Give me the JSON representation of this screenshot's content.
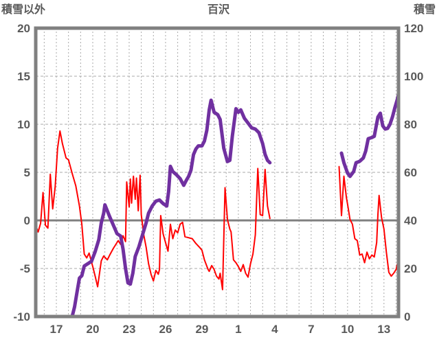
{
  "header": {
    "left_axis_title": "積雪以外",
    "title": "百沢",
    "right_axis_title": "積雪"
  },
  "chart_data": {
    "type": "line",
    "title": "百沢",
    "left_axis": {
      "label": "積雪以外",
      "ticks": [
        20,
        15,
        10,
        5,
        0,
        -5,
        -10
      ],
      "range": [
        -10,
        20
      ]
    },
    "right_axis": {
      "label": "積雪",
      "ticks": [
        120,
        100,
        80,
        60,
        40,
        20,
        0
      ],
      "range": [
        0,
        120
      ]
    },
    "x_axis": {
      "tick_positions": [
        17,
        20,
        23,
        26,
        29,
        32,
        35,
        38,
        41,
        44
      ],
      "tick_labels": [
        "17",
        "20",
        "23",
        "26",
        "29",
        "1",
        "4",
        "7",
        "10",
        "13"
      ],
      "range": [
        15.3,
        45.2
      ]
    },
    "grid": {
      "v_day_start": 16,
      "v_day_end": 45,
      "h_left_values": [
        15,
        10,
        5,
        -5
      ],
      "zero_value": 0
    },
    "colors": {
      "red_series": "#ff0000",
      "purple_series": "#7030a0",
      "axis": "#808080",
      "text": "#595959",
      "grid": "#a8a8a8"
    },
    "series": [
      {
        "name": "積雪以外",
        "axis": "left",
        "color": "#ff0000",
        "width": 2,
        "segments": [
          [
            [
              15.3,
              -0.5
            ],
            [
              15.5,
              -1.2
            ],
            [
              15.7,
              -0.3
            ],
            [
              15.9,
              2.9
            ],
            [
              16.1,
              -0.5
            ],
            [
              16.3,
              -0.8
            ],
            [
              16.5,
              4.8
            ],
            [
              16.7,
              1.2
            ],
            [
              16.9,
              3.5
            ],
            [
              17.1,
              7.5
            ],
            [
              17.3,
              9.3
            ],
            [
              17.5,
              8
            ],
            [
              17.8,
              6.5
            ],
            [
              18,
              6.3
            ],
            [
              18.3,
              4.9
            ],
            [
              18.6,
              3.6
            ],
            [
              18.9,
              1.5
            ],
            [
              19.1,
              -0.4
            ],
            [
              19.3,
              -3.5
            ],
            [
              19.5,
              -3.9
            ],
            [
              19.7,
              -3.4
            ],
            [
              20,
              -4.8
            ],
            [
              20.2,
              -5.8
            ],
            [
              20.4,
              -6.9
            ],
            [
              20.7,
              -4.2
            ],
            [
              20.9,
              -3.7
            ],
            [
              21.2,
              -4.1
            ],
            [
              21.4,
              -3.6
            ],
            [
              21.7,
              -2.9
            ],
            [
              22.1,
              -2.1
            ],
            [
              22.3,
              -2.5
            ],
            [
              22.5,
              -1.6
            ],
            [
              22.7,
              -2.2
            ],
            [
              22.8,
              4
            ],
            [
              23,
              1.4
            ],
            [
              23.1,
              4.3
            ],
            [
              23.2,
              1.8
            ],
            [
              23.35,
              4.6
            ],
            [
              23.5,
              2.2
            ],
            [
              23.6,
              4.4
            ],
            [
              23.75,
              1
            ],
            [
              23.9,
              4.7
            ],
            [
              24,
              0.6
            ],
            [
              24.2,
              -1.5
            ],
            [
              24.4,
              -2.8
            ],
            [
              24.6,
              -4.5
            ],
            [
              24.8,
              -5.6
            ],
            [
              25,
              -6.3
            ],
            [
              25.2,
              -5.2
            ],
            [
              25.4,
              -5.6
            ],
            [
              25.5,
              -5.1
            ],
            [
              25.6,
              0.5
            ],
            [
              25.8,
              -1.4
            ],
            [
              26,
              -2.3
            ],
            [
              26.2,
              -3.2
            ],
            [
              26.4,
              -0.4
            ],
            [
              26.6,
              -1.9
            ],
            [
              26.8,
              -1
            ],
            [
              27,
              -1.3
            ],
            [
              27.2,
              -0.4
            ],
            [
              27.4,
              -0.2
            ],
            [
              27.6,
              -1.7
            ],
            [
              27.9,
              -1.8
            ],
            [
              28.2,
              -1.9
            ],
            [
              28.5,
              -2.4
            ],
            [
              28.8,
              -2.8
            ],
            [
              29,
              -3.1
            ],
            [
              29.2,
              -4.1
            ],
            [
              29.5,
              -5.1
            ],
            [
              29.6,
              -5.3
            ],
            [
              29.8,
              -4.7
            ],
            [
              30,
              -5.1
            ],
            [
              30.2,
              -5.8
            ],
            [
              30.4,
              -6.1
            ],
            [
              30.5,
              -5.5
            ],
            [
              30.7,
              -7.2
            ],
            [
              30.9,
              3.4
            ],
            [
              31.1,
              0.1
            ],
            [
              31.3,
              -0.9
            ],
            [
              31.4,
              -1.2
            ],
            [
              31.6,
              -4.1
            ],
            [
              31.8,
              -4.4
            ],
            [
              32,
              -4.8
            ],
            [
              32.2,
              -5.3
            ],
            [
              32.4,
              -4.6
            ],
            [
              32.6,
              -5.5
            ],
            [
              32.8,
              -5.9
            ],
            [
              33,
              -4.5
            ],
            [
              33.2,
              -3.5
            ],
            [
              33.4,
              -1.5
            ],
            [
              33.5,
              2
            ],
            [
              33.6,
              5.4
            ],
            [
              33.8,
              0.6
            ],
            [
              34,
              0.5
            ],
            [
              34.2,
              5.3
            ],
            [
              34.4,
              1.5
            ],
            [
              34.6,
              0.2
            ]
          ],
          [
            [
              40.3,
              5.6
            ],
            [
              40.5,
              0.5
            ],
            [
              40.7,
              4.6
            ],
            [
              40.9,
              2.4
            ],
            [
              41,
              1.7
            ],
            [
              41.2,
              0.1
            ],
            [
              41.4,
              -0.4
            ],
            [
              41.6,
              -1.9
            ],
            [
              41.8,
              -2.1
            ],
            [
              42,
              -3.6
            ],
            [
              42.2,
              -3.5
            ],
            [
              42.4,
              -4.4
            ],
            [
              42.6,
              -3.3
            ],
            [
              42.8,
              -4
            ],
            [
              43,
              -3.6
            ],
            [
              43.2,
              -3.8
            ],
            [
              43.4,
              -2.3
            ],
            [
              43.5,
              0.6
            ],
            [
              43.6,
              2.6
            ],
            [
              43.8,
              0.3
            ],
            [
              44,
              -0.9
            ],
            [
              44.2,
              -3.3
            ],
            [
              44.4,
              -5.4
            ],
            [
              44.6,
              -5.8
            ],
            [
              44.8,
              -5.5
            ],
            [
              45,
              -5.1
            ],
            [
              45.2,
              -4
            ]
          ]
        ]
      },
      {
        "name": "積雪",
        "axis": "right",
        "color": "#7030a0",
        "width": 5,
        "segments": [
          [
            [
              15.3,
              0
            ],
            [
              18.3,
              0
            ],
            [
              18.5,
              4
            ],
            [
              18.7,
              10
            ],
            [
              18.9,
              16
            ],
            [
              19.1,
              17
            ],
            [
              19.3,
              21
            ],
            [
              19.6,
              22
            ],
            [
              19.9,
              23
            ],
            [
              20.2,
              27
            ],
            [
              20.5,
              32
            ],
            [
              20.7,
              39
            ],
            [
              20.9,
              43
            ],
            [
              21,
              46.5
            ],
            [
              21.2,
              44
            ],
            [
              21.4,
              41.5
            ],
            [
              21.7,
              38
            ],
            [
              22,
              34.5
            ],
            [
              22.3,
              33.5
            ],
            [
              22.5,
              28
            ],
            [
              22.7,
              20
            ],
            [
              22.9,
              14
            ],
            [
              23.1,
              13.5
            ],
            [
              23.3,
              18
            ],
            [
              23.5,
              25
            ],
            [
              23.8,
              29
            ],
            [
              24.1,
              34
            ],
            [
              24.4,
              39
            ],
            [
              24.6,
              43
            ],
            [
              24.9,
              46
            ],
            [
              25.2,
              48
            ],
            [
              25.5,
              48.5
            ],
            [
              25.8,
              47
            ],
            [
              26.1,
              46
            ],
            [
              26.25,
              52
            ],
            [
              26.4,
              62.5
            ],
            [
              26.6,
              60.3
            ],
            [
              26.9,
              59
            ],
            [
              27.2,
              57.4
            ],
            [
              27.5,
              54.6
            ],
            [
              27.7,
              56.6
            ],
            [
              27.9,
              58.3
            ],
            [
              28.1,
              61
            ],
            [
              28.3,
              67.4
            ],
            [
              28.5,
              69.7
            ],
            [
              28.7,
              71
            ],
            [
              29,
              71
            ],
            [
              29.2,
              73
            ],
            [
              29.4,
              77.5
            ],
            [
              29.6,
              86
            ],
            [
              29.75,
              90
            ],
            [
              30,
              85
            ],
            [
              30.3,
              84
            ],
            [
              30.5,
              82
            ],
            [
              30.8,
              70
            ],
            [
              31.1,
              64.5
            ],
            [
              31.3,
              65
            ],
            [
              31.5,
              75
            ],
            [
              31.8,
              86.5
            ],
            [
              32,
              85
            ],
            [
              32.2,
              86
            ],
            [
              32.5,
              82.5
            ],
            [
              32.8,
              80.5
            ],
            [
              33.1,
              78.5
            ],
            [
              33.4,
              78
            ],
            [
              33.7,
              76.5
            ],
            [
              34,
              72
            ],
            [
              34.2,
              67.5
            ],
            [
              34.4,
              65
            ],
            [
              34.6,
              64
            ]
          ],
          [
            [
              40.5,
              68
            ],
            [
              40.7,
              64
            ],
            [
              41,
              59.7
            ],
            [
              41.2,
              58.3
            ],
            [
              41.5,
              60.3
            ],
            [
              41.7,
              64
            ],
            [
              42,
              64.6
            ],
            [
              42.3,
              66
            ],
            [
              42.5,
              68.9
            ],
            [
              42.7,
              74
            ],
            [
              43,
              74.5
            ],
            [
              43.2,
              75
            ],
            [
              43.5,
              83
            ],
            [
              43.7,
              84.6
            ],
            [
              43.9,
              79.4
            ],
            [
              44.1,
              78
            ],
            [
              44.3,
              78.3
            ],
            [
              44.5,
              80
            ],
            [
              44.7,
              83.1
            ],
            [
              44.9,
              86.9
            ],
            [
              45.1,
              90.3
            ],
            [
              45.2,
              92.6
            ]
          ]
        ]
      }
    ]
  }
}
